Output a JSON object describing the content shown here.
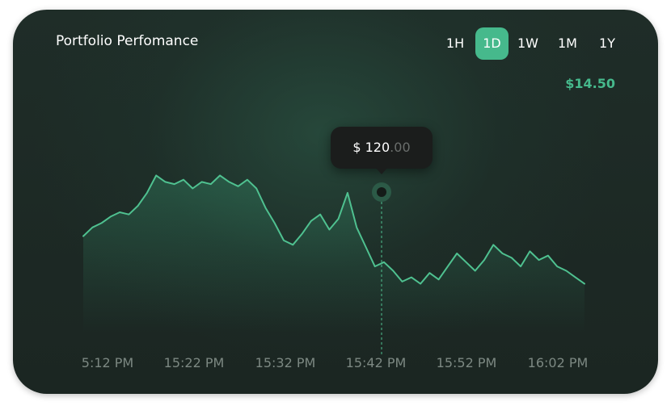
{
  "card": {
    "title": "Portfolio Perfomance",
    "value": "$14.50"
  },
  "ranges": [
    {
      "label": "1H",
      "active": false
    },
    {
      "label": "1D",
      "active": true
    },
    {
      "label": "1W",
      "active": false
    },
    {
      "label": "1M",
      "active": false
    },
    {
      "label": "1Y",
      "active": false
    }
  ],
  "tooltip": {
    "prefix": "$ ",
    "whole": "120",
    "cents": ".00"
  },
  "colors": {
    "accent": "#46b98c",
    "line": "#4fc190",
    "background": "#1f2d28"
  },
  "chart_data": {
    "type": "area",
    "x_tick_labels": [
      "5:12 PM",
      "15:22 PM",
      "15:32 PM",
      "15:42 PM",
      "15:52 PM",
      "16:02 PM"
    ],
    "x": [
      0,
      1,
      2,
      3,
      4,
      5,
      6,
      7,
      8,
      9,
      10,
      11,
      12,
      13,
      14,
      15,
      16,
      17,
      18,
      19,
      20,
      21,
      22,
      23,
      24,
      25,
      26,
      27,
      28,
      29,
      30,
      31,
      32,
      33,
      34,
      35,
      36,
      37,
      38,
      39,
      40,
      41,
      42,
      43,
      44,
      45,
      46,
      47,
      48,
      49,
      50,
      51,
      52,
      53,
      54,
      55
    ],
    "values": [
      52,
      56,
      58,
      61,
      63,
      62,
      66,
      72,
      80,
      77,
      76,
      78,
      74,
      77,
      76,
      80,
      77,
      75,
      78,
      74,
      65,
      58,
      50,
      48,
      53,
      59,
      62,
      55,
      60,
      72,
      56,
      47,
      38,
      40,
      36,
      31,
      33,
      30,
      35,
      32,
      38,
      44,
      40,
      36,
      41,
      48,
      44,
      42,
      38,
      45,
      41,
      43,
      38,
      36,
      33,
      30
    ],
    "highlight": {
      "x": 32,
      "label": "$ 120.00"
    },
    "grid": false,
    "legend": "none"
  }
}
